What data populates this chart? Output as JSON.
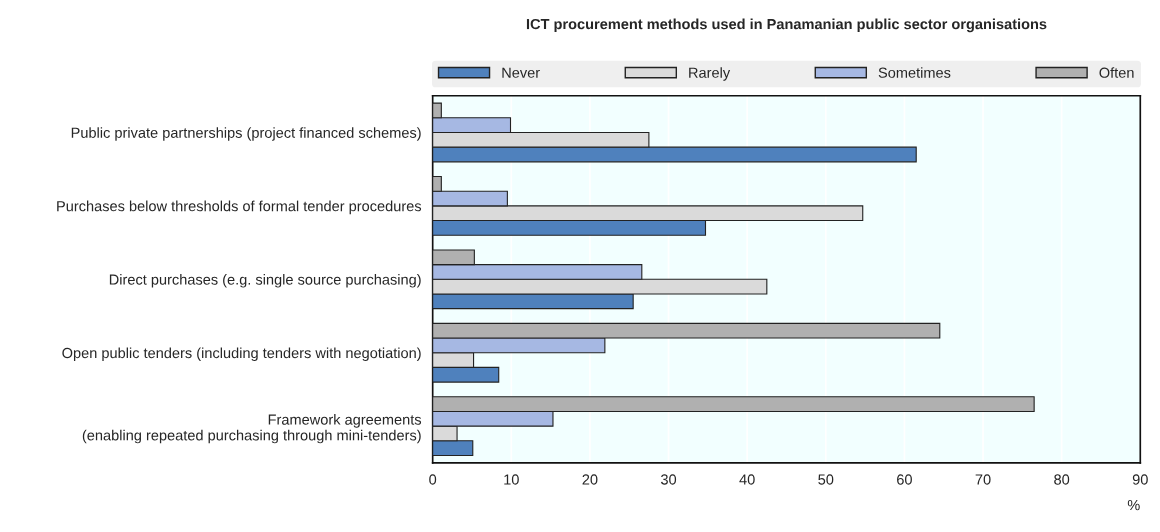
{
  "chart_data": {
    "type": "bar",
    "orientation": "horizontal",
    "title": "ICT procurement methods used in Panamanian public sector organisations",
    "xlabel": "%",
    "categories": [
      "Public private partnerships (project financed schemes)",
      "Purchases below thresholds of formal tender procedures",
      "Direct purchases (e.g. single source purchasing)",
      "Open public tenders (including tenders with negotiation)",
      "Framework agreements\n(enabling repeated purchasing through mini-tenders)"
    ],
    "series": [
      {
        "name": "Never",
        "color": "#4f81bd",
        "values": [
          61.5,
          34.7,
          25.5,
          8.4,
          5.1
        ]
      },
      {
        "name": "Rarely",
        "color": "#dadada",
        "values": [
          27.5,
          54.7,
          42.5,
          5.2,
          3.1
        ]
      },
      {
        "name": "Sometimes",
        "color": "#a6b8e3",
        "values": [
          9.9,
          9.5,
          26.6,
          21.9,
          15.3
        ]
      },
      {
        "name": "Often",
        "color": "#b0b0b0",
        "values": [
          1.1,
          1.1,
          5.3,
          64.5,
          76.5
        ]
      }
    ],
    "xlim": [
      0,
      90
    ],
    "xticks": [
      0,
      10,
      20,
      30,
      40,
      50,
      60,
      70,
      80,
      90
    ],
    "grid": "x",
    "legend": "top"
  }
}
